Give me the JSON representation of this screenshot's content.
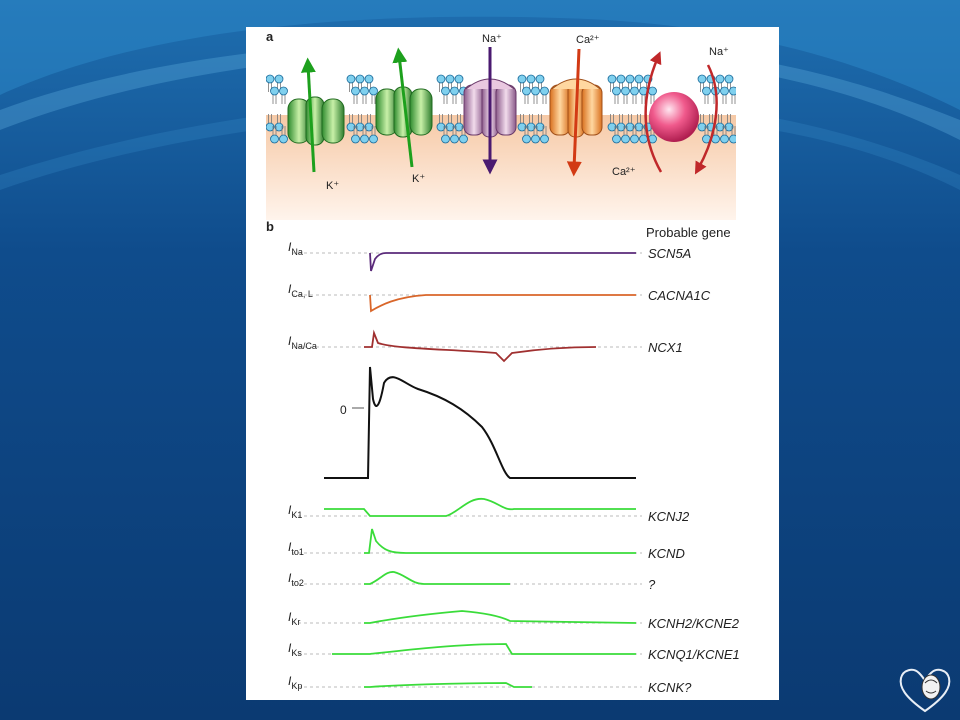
{
  "panel_a": {
    "letter": "a",
    "ions": {
      "na_top": "Na⁺",
      "ca_top": "Ca²⁺",
      "na_exchanger": "Na⁺",
      "k_left": "K⁺",
      "k_right": "K⁺",
      "ca_exchanger": "Ca²⁺"
    }
  },
  "panel_b": {
    "letter": "b",
    "gene_header": "Probable gene",
    "zero_label": "0",
    "traces": [
      {
        "current": "I",
        "sub": "Na",
        "gene": "SCN5A",
        "color": "#5a2a7a"
      },
      {
        "current": "I",
        "sub": "Ca, L",
        "gene": "CACNA1C",
        "color": "#d9662a"
      },
      {
        "current": "I",
        "sub": "Na/Ca",
        "gene": "NCX1",
        "color": "#a03030"
      },
      {
        "current": "I",
        "sub": "K1",
        "gene": "KCNJ2",
        "color": "#3adc3a"
      },
      {
        "current": "I",
        "sub": "to1",
        "gene": "KCND",
        "color": "#3adc3a"
      },
      {
        "current": "I",
        "sub": "to2",
        "gene": "?",
        "color": "#3adc3a"
      },
      {
        "current": "I",
        "sub": "Kr",
        "gene": "KCNH2/KCNE2",
        "color": "#3adc3a"
      },
      {
        "current": "I",
        "sub": "Ks",
        "gene": "KCNQ1/KCNE1",
        "color": "#3adc3a"
      },
      {
        "current": "I",
        "sub": "Kp",
        "gene": "KCNK?",
        "color": "#3adc3a"
      }
    ]
  }
}
